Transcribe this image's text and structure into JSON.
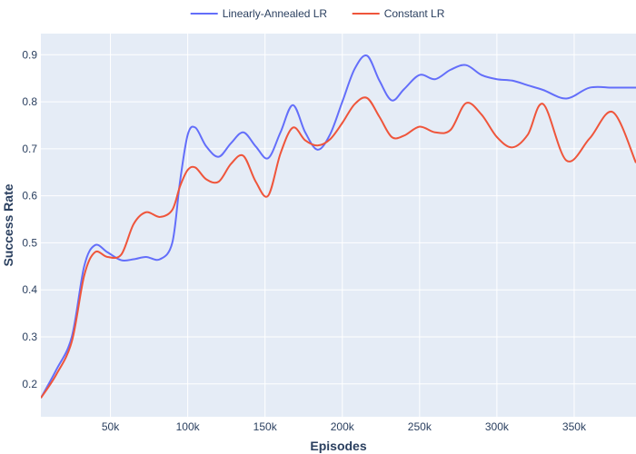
{
  "chart_data": {
    "type": "line",
    "xlabel": "Episodes",
    "ylabel": "Success Rate",
    "xlim": [
      5000,
      390000
    ],
    "ylim": [
      0.13,
      0.945
    ],
    "x_ticks": [
      50000,
      100000,
      150000,
      200000,
      250000,
      300000,
      350000
    ],
    "x_tick_labels": [
      "50k",
      "100k",
      "150k",
      "200k",
      "250k",
      "300k",
      "350k"
    ],
    "y_ticks": [
      0.2,
      0.3,
      0.4,
      0.5,
      0.6,
      0.7,
      0.8,
      0.9
    ],
    "y_tick_labels": [
      "0.2",
      "0.3",
      "0.4",
      "0.5",
      "0.6",
      "0.7",
      "0.8",
      "0.9"
    ],
    "grid": true,
    "legend_position": "top-center",
    "background": "#e5ecf6",
    "series": [
      {
        "name": "Linearly-Annealed LR",
        "color": "#636efa",
        "x": [
          5000,
          15000,
          25000,
          33000,
          40000,
          48000,
          57000,
          65000,
          73000,
          82000,
          90000,
          95000,
          100000,
          105000,
          112000,
          120000,
          128000,
          136000,
          144000,
          152000,
          160000,
          168000,
          176000,
          184000,
          192000,
          200000,
          208000,
          216000,
          224000,
          232000,
          240000,
          250000,
          260000,
          270000,
          280000,
          290000,
          300000,
          310000,
          320000,
          330000,
          345000,
          360000,
          375000,
          390000
        ],
        "y": [
          0.17,
          0.23,
          0.3,
          0.45,
          0.495,
          0.48,
          0.463,
          0.465,
          0.47,
          0.465,
          0.5,
          0.63,
          0.73,
          0.745,
          0.705,
          0.683,
          0.712,
          0.735,
          0.705,
          0.68,
          0.735,
          0.793,
          0.735,
          0.698,
          0.73,
          0.8,
          0.87,
          0.898,
          0.845,
          0.803,
          0.827,
          0.857,
          0.848,
          0.868,
          0.878,
          0.857,
          0.848,
          0.845,
          0.835,
          0.825,
          0.807,
          0.83,
          0.83,
          0.83
        ]
      },
      {
        "name": "Constant LR",
        "color": "#ef553b",
        "x": [
          5000,
          15000,
          25000,
          33000,
          40000,
          48000,
          57000,
          65000,
          73000,
          82000,
          90000,
          95000,
          100000,
          105000,
          112000,
          120000,
          128000,
          136000,
          144000,
          152000,
          160000,
          168000,
          176000,
          184000,
          192000,
          200000,
          208000,
          216000,
          224000,
          232000,
          240000,
          250000,
          260000,
          270000,
          280000,
          290000,
          300000,
          310000,
          320000,
          330000,
          345000,
          360000,
          375000,
          390000
        ],
        "y": [
          0.17,
          0.22,
          0.29,
          0.43,
          0.48,
          0.47,
          0.475,
          0.54,
          0.565,
          0.555,
          0.57,
          0.62,
          0.655,
          0.66,
          0.635,
          0.63,
          0.668,
          0.685,
          0.63,
          0.6,
          0.69,
          0.745,
          0.718,
          0.707,
          0.72,
          0.755,
          0.795,
          0.808,
          0.768,
          0.725,
          0.728,
          0.747,
          0.735,
          0.74,
          0.797,
          0.773,
          0.725,
          0.703,
          0.73,
          0.795,
          0.675,
          0.722,
          0.778,
          0.67
        ]
      }
    ]
  }
}
